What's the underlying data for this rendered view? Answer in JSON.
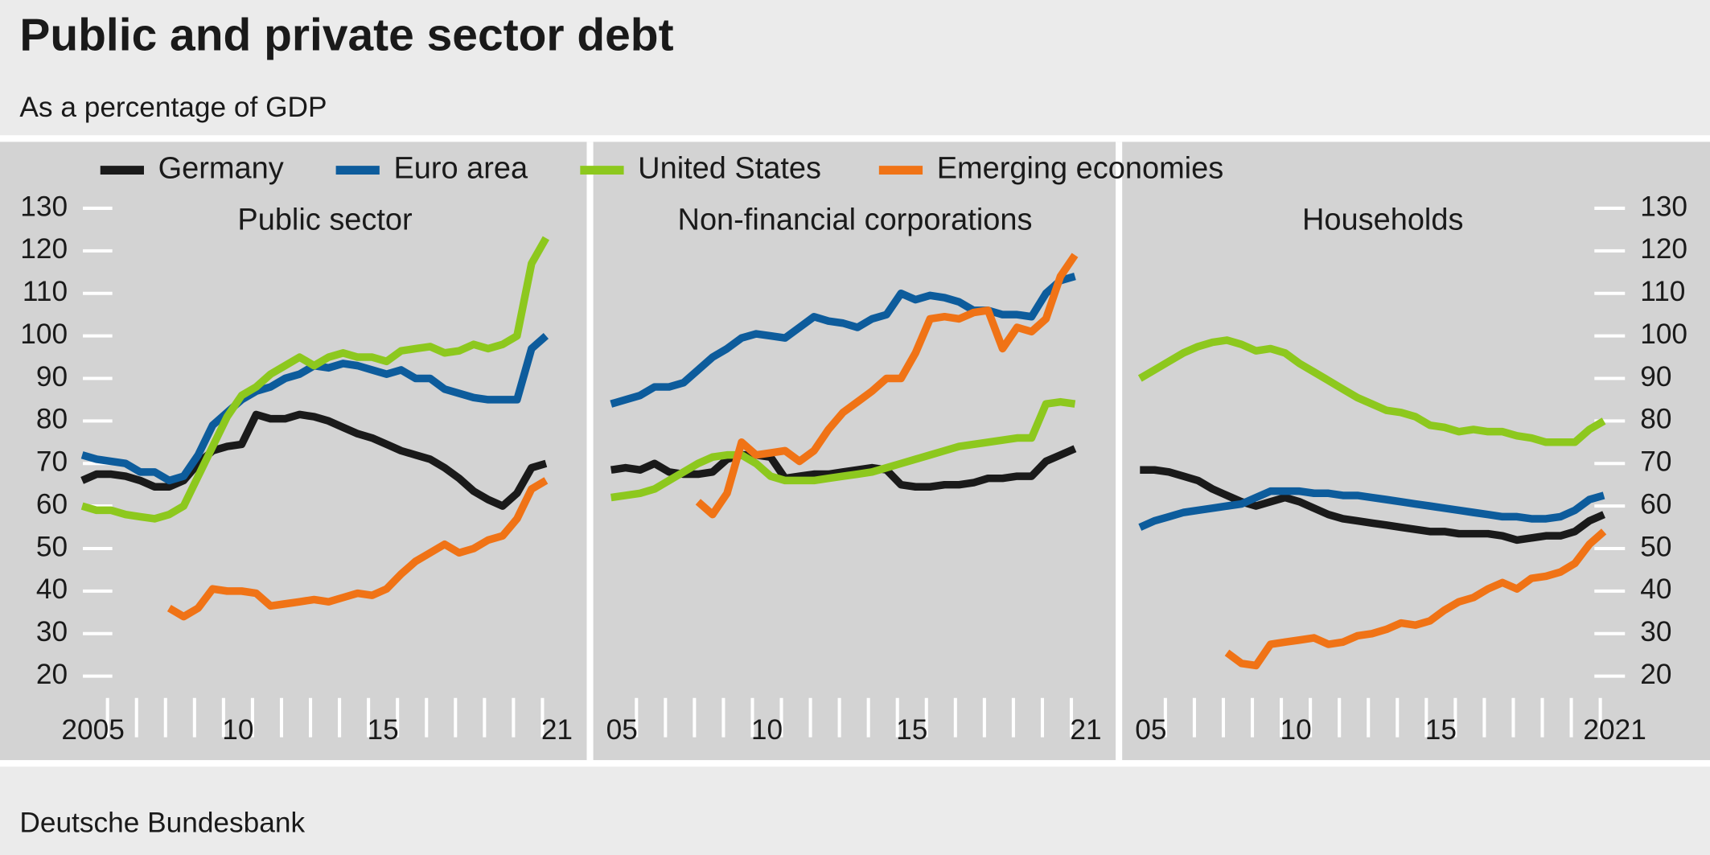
{
  "title": "Public and private sector debt",
  "subtitle": "As a percentage of GDP",
  "source": "Deutsche Bundesbank",
  "chart_data": [
    {
      "type": "line",
      "title": "Public sector",
      "x": [
        2005.125,
        2005.625,
        2006.125,
        2006.625,
        2007.125,
        2007.625,
        2008.125,
        2008.625,
        2009.125,
        2009.625,
        2010.125,
        2010.625,
        2011.125,
        2011.625,
        2012.125,
        2012.625,
        2013.125,
        2013.625,
        2014.125,
        2014.625,
        2015.125,
        2015.625,
        2016.125,
        2016.625,
        2017.125,
        2017.625,
        2018.125,
        2018.625,
        2019.125,
        2019.625,
        2020.125,
        2020.625,
        2021.125
      ],
      "xlim": [
        2005,
        2022
      ],
      "xticks": [
        2005,
        {
          "value": 2010,
          "label": "10"
        },
        {
          "value": 2015,
          "label": "15"
        },
        {
          "value": 2021,
          "label": "21"
        }
      ],
      "xminorticks": [
        2006,
        2007,
        2008,
        2009,
        2010,
        2011,
        2012,
        2013,
        2014,
        2015,
        2016,
        2017,
        2018,
        2019,
        2020,
        2021
      ],
      "ylim": [
        20,
        130
      ],
      "yticks": [
        20,
        30,
        40,
        50,
        60,
        70,
        80,
        90,
        100,
        110,
        120,
        130
      ],
      "ytick_side": "left",
      "series": [
        {
          "name": "Germany",
          "color": "#1a1a1a",
          "values": [
            66,
            67.5,
            67.5,
            67,
            66,
            64.5,
            64.5,
            66,
            70,
            73,
            74,
            74.5,
            81.5,
            80.5,
            80.5,
            81.5,
            81,
            80,
            78.5,
            77,
            76,
            74.5,
            73,
            72,
            71,
            69,
            66.5,
            63.5,
            61.5,
            60,
            63,
            69,
            70
          ]
        },
        {
          "name": "Euro area",
          "color": "#0d5c9c",
          "values": [
            72,
            71,
            70.5,
            70,
            68,
            68,
            66,
            67,
            72,
            79,
            82,
            85,
            87,
            88,
            90,
            91,
            93,
            92.5,
            93.5,
            93,
            92,
            91,
            92,
            90,
            90,
            87.5,
            86.5,
            85.5,
            85,
            85,
            85,
            97,
            100
          ]
        },
        {
          "name": "United States",
          "color": "#8dc81e",
          "values": [
            60,
            59,
            59,
            58,
            57.5,
            57,
            58,
            60,
            67,
            74,
            81,
            86,
            88,
            91,
            93,
            95,
            93,
            95,
            96,
            95,
            95,
            94,
            96.5,
            97,
            97.5,
            96,
            96.5,
            98,
            97,
            98,
            100,
            117,
            123
          ]
        },
        {
          "name": "Emerging economies",
          "color": "#f07316",
          "values": [
            null,
            null,
            null,
            null,
            null,
            null,
            36,
            34,
            36,
            40.5,
            40,
            40,
            39.5,
            36.5,
            37,
            37.5,
            38,
            37.5,
            38.5,
            39.5,
            39,
            40.5,
            44,
            47,
            49,
            51,
            49,
            50,
            52,
            53,
            57,
            64,
            66
          ]
        }
      ]
    },
    {
      "type": "line",
      "title": "Non-financial corporations",
      "x": [
        2005.125,
        2005.625,
        2006.125,
        2006.625,
        2007.125,
        2007.625,
        2008.125,
        2008.625,
        2009.125,
        2009.625,
        2010.125,
        2010.625,
        2011.125,
        2011.625,
        2012.125,
        2012.625,
        2013.125,
        2013.625,
        2014.125,
        2014.625,
        2015.125,
        2015.625,
        2016.125,
        2016.625,
        2017.125,
        2017.625,
        2018.125,
        2018.625,
        2019.125,
        2019.625,
        2020.125,
        2020.625,
        2021.125
      ],
      "xlim": [
        2005,
        2022
      ],
      "xticks": [
        {
          "value": 2005,
          "label": "05"
        },
        {
          "value": 2010,
          "label": "10"
        },
        {
          "value": 2015,
          "label": "15"
        },
        {
          "value": 2021,
          "label": "21"
        }
      ],
      "xminorticks": [
        2006,
        2007,
        2008,
        2009,
        2010,
        2011,
        2012,
        2013,
        2014,
        2015,
        2016,
        2017,
        2018,
        2019,
        2020,
        2021
      ],
      "ylim": [
        20,
        130
      ],
      "series": [
        {
          "color": "#1a1a1a",
          "values": [
            68.5,
            69,
            68.5,
            70,
            68,
            67.5,
            67.5,
            68,
            71,
            72,
            72,
            71.5,
            66.5,
            67,
            67.5,
            67.5,
            68,
            68.5,
            69,
            68.5,
            65,
            64.5,
            64.5,
            65,
            65,
            65.5,
            66.5,
            66.5,
            67,
            67,
            70.5,
            72,
            73.5
          ]
        },
        {
          "color": "#0d5c9c",
          "values": [
            84,
            85,
            86,
            88,
            88,
            89,
            92,
            95,
            97,
            99.5,
            100.5,
            100,
            99.5,
            102,
            104.5,
            103.5,
            103,
            102,
            104,
            105,
            110,
            108.5,
            109.5,
            109,
            108,
            106,
            106,
            105,
            105,
            104.5,
            110,
            113,
            114
          ]
        },
        {
          "color": "#8dc81e",
          "values": [
            62,
            62.5,
            63,
            64,
            66,
            68,
            70,
            71.5,
            72,
            72,
            70,
            67,
            66,
            66,
            66,
            66.5,
            67,
            67.5,
            68,
            69,
            70,
            71,
            72,
            73,
            74,
            74.5,
            75,
            75.5,
            76,
            76,
            84,
            84.5,
            84
          ]
        },
        {
          "color": "#f07316",
          "values": [
            null,
            null,
            null,
            null,
            null,
            null,
            61,
            58,
            63,
            75,
            72,
            72.5,
            73,
            70.5,
            73,
            78,
            82,
            84.5,
            87,
            90,
            90,
            96,
            104,
            104.5,
            104,
            105.5,
            106,
            97,
            102,
            101,
            104,
            114,
            119
          ]
        }
      ]
    },
    {
      "type": "line",
      "title": "Households",
      "x": [
        2005.125,
        2005.625,
        2006.125,
        2006.625,
        2007.125,
        2007.625,
        2008.125,
        2008.625,
        2009.125,
        2009.625,
        2010.125,
        2010.625,
        2011.125,
        2011.625,
        2012.125,
        2012.625,
        2013.125,
        2013.625,
        2014.125,
        2014.625,
        2015.125,
        2015.625,
        2016.125,
        2016.625,
        2017.125,
        2017.625,
        2018.125,
        2018.625,
        2019.125,
        2019.625,
        2020.125,
        2020.625,
        2021.125
      ],
      "xlim": [
        2005,
        2022
      ],
      "xticks": [
        {
          "value": 2005,
          "label": "05"
        },
        {
          "value": 2010,
          "label": "10"
        },
        {
          "value": 2015,
          "label": "15"
        },
        2021
      ],
      "xminorticks": [
        2006,
        2007,
        2008,
        2009,
        2010,
        2011,
        2012,
        2013,
        2014,
        2015,
        2016,
        2017,
        2018,
        2019,
        2020,
        2021
      ],
      "ylim": [
        20,
        130
      ],
      "yticks": [
        20,
        30,
        40,
        50,
        60,
        70,
        80,
        90,
        100,
        110,
        120,
        130
      ],
      "ytick_side": "right",
      "series": [
        {
          "color": "#1a1a1a",
          "values": [
            68.5,
            68.5,
            68,
            67,
            66,
            64,
            62.5,
            61,
            60,
            61,
            62,
            61,
            59.5,
            58,
            57,
            56.5,
            56,
            55.5,
            55,
            54.5,
            54,
            54,
            53.5,
            53.5,
            53.5,
            53,
            52,
            52.5,
            53,
            53,
            54,
            56.5,
            58
          ]
        },
        {
          "color": "#0d5c9c",
          "values": [
            55,
            56.5,
            57.5,
            58.5,
            59,
            59.5,
            60,
            60.5,
            62,
            63.5,
            63.5,
            63.5,
            63,
            63,
            62.5,
            62.5,
            62,
            61.5,
            61,
            60.5,
            60,
            59.5,
            59,
            58.5,
            58,
            57.5,
            57.5,
            57,
            57,
            57.5,
            59,
            61.5,
            62.5
          ]
        },
        {
          "color": "#8dc81e",
          "values": [
            90,
            92,
            94,
            96,
            97.5,
            98.5,
            99,
            98,
            96.5,
            97,
            96,
            93.5,
            91.5,
            89.5,
            87.5,
            85.5,
            84,
            82.5,
            82,
            81,
            79,
            78.5,
            77.5,
            78,
            77.5,
            77.5,
            76.5,
            76,
            75,
            75,
            75,
            78,
            80
          ]
        },
        {
          "color": "#f07316",
          "values": [
            null,
            null,
            null,
            null,
            null,
            null,
            25.5,
            23,
            22.5,
            27.5,
            28,
            28.5,
            29,
            27.5,
            28,
            29.5,
            30,
            31,
            32.5,
            32,
            33,
            35.5,
            37.5,
            38.5,
            40.5,
            42,
            40.5,
            43,
            43.5,
            44.5,
            46.5,
            51,
            54
          ]
        }
      ]
    }
  ]
}
